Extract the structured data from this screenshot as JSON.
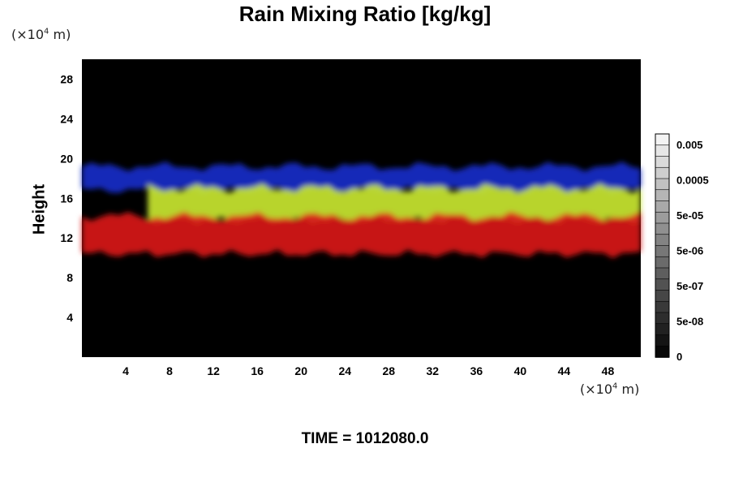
{
  "chart_data": {
    "type": "heatmap",
    "title": "Rain Mixing Ratio [kg/kg]",
    "ylabel": "Height",
    "x_unit": {
      "prefix": "(×10",
      "exp": "4",
      "suffix": " m)"
    },
    "y_unit": {
      "prefix": "(×10",
      "exp": "4",
      "suffix": " m)"
    },
    "xlim": [
      0,
      51
    ],
    "ylim": [
      0,
      30
    ],
    "x_ticks": [
      4,
      8,
      12,
      16,
      20,
      24,
      28,
      32,
      36,
      40,
      44,
      48
    ],
    "y_ticks": [
      4,
      8,
      12,
      16,
      20,
      24,
      28
    ],
    "background_color": "#000000",
    "layers": [
      {
        "color": "#1a2cc8",
        "band": [
          16.8,
          19.2
        ],
        "x_range": [
          0,
          51
        ]
      },
      {
        "color": "#c8e632",
        "band": [
          13.8,
          17.0
        ],
        "x_range": [
          6,
          51
        ]
      },
      {
        "color": "#d81a1a",
        "band": [
          10.4,
          14.2
        ],
        "x_range": [
          0,
          51
        ]
      }
    ],
    "colorbar": {
      "tick_labels": [
        "0.005",
        "0.0005",
        "5e-05",
        "5e-06",
        "5e-07",
        "5e-08",
        "0"
      ],
      "levels": 20
    }
  },
  "footer": {
    "time_label": "TIME = 1012080.0"
  }
}
